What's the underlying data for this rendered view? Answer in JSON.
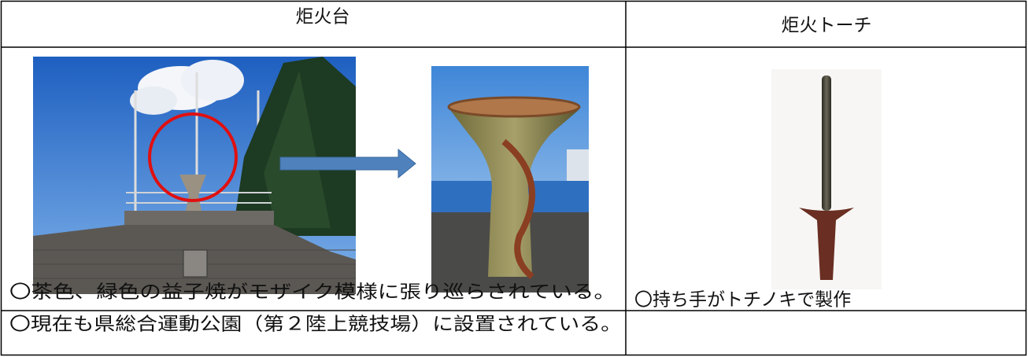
{
  "table": {
    "header": [
      "炬火台",
      "炬火トーチ"
    ],
    "notes": [
      [
        "〇茶色、緑色の益子焼がモザイク模様に張り巡らされている。",
        "〇現在も県総合運動公園（第２陸上競技場）に設置されている。"
      ],
      [
        "〇持ち手がトチノキで製作"
      ]
    ]
  }
}
